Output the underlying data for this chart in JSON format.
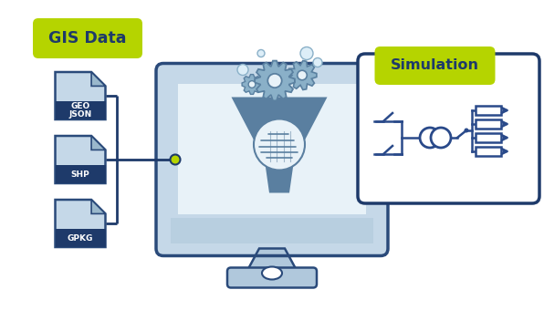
{
  "bg_color": "#ffffff",
  "monitor_body_color": "#c5d8e8",
  "monitor_screen_color": "#e8f2f8",
  "monitor_border_color": "#2a4a7a",
  "monitor_bottom_bar_color": "#b8cfe0",
  "funnel_color": "#5a7fa0",
  "gear_fill": "#8ab0c8",
  "gear_outline": "#5a80a0",
  "gear_bubble_fill": "#ddeef8",
  "gear_bubble_outline": "#8ab0c8",
  "file_body_color": "#c5d8e8",
  "file_border_color": "#2a4a7a",
  "file_fold_color": "#9ab8cc",
  "file_label_bg": "#1e3a6a",
  "file_label_text": "#ffffff",
  "gis_label_bg": "#b5d400",
  "gis_label_text": "#1e3a6a",
  "sim_label_bg": "#b5d400",
  "sim_label_text": "#1e3a6a",
  "connector_color": "#1e3a6a",
  "connector_dot_fill": "#b5d400",
  "connector_dot_border": "#1e3a6a",
  "sim_box_fill": "#ffffff",
  "sim_box_border": "#1e3a6a",
  "circuit_color": "#2a4a8a",
  "fingerprint_fill": "#e8f2f8",
  "fingerprint_line": "#5a7fa0",
  "stand_color": "#b0c8dc",
  "stand_border": "#2a4a7a",
  "title_gis": "GIS Data",
  "title_sim": "Simulation",
  "file_labels": [
    "GEO\nJSON",
    "SHP",
    "GPKG"
  ]
}
